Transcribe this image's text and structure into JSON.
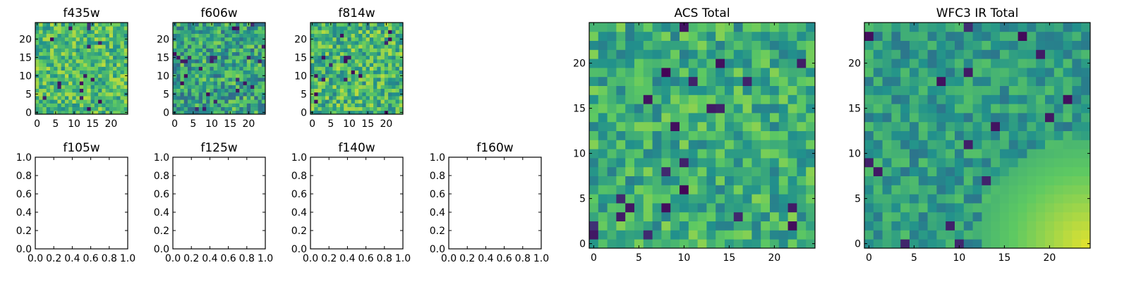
{
  "colormap": [
    "#440154",
    "#3b528b",
    "#21918c",
    "#5ec962",
    "#fde725"
  ],
  "chart_data": [
    {
      "type": "heatmap",
      "title": "f435w",
      "grid": false,
      "size": 25,
      "xlim": [
        -0.5,
        24.5
      ],
      "ylim": [
        -0.5,
        24.5
      ],
      "xticks": [
        0,
        5,
        10,
        15,
        20
      ],
      "yticks": [
        0,
        5,
        10,
        15,
        20
      ],
      "xtick_labels": [
        "0",
        "5",
        "10",
        "15",
        "20"
      ],
      "ytick_labels": [
        "0",
        "5",
        "10",
        "15",
        "20"
      ],
      "values_note": "25x25 pixel intensities; noisy, mostly mid-high (green-yellow)",
      "stats": {
        "mean": 0.68,
        "spread": 0.22,
        "seed": 11
      }
    },
    {
      "type": "heatmap",
      "title": "f606w",
      "grid": false,
      "size": 25,
      "xlim": [
        -0.5,
        24.5
      ],
      "ylim": [
        -0.5,
        24.5
      ],
      "xticks": [
        0,
        5,
        10,
        15,
        20
      ],
      "yticks": [
        0,
        5,
        10,
        15,
        20
      ],
      "xtick_labels": [
        "0",
        "5",
        "10",
        "15",
        "20"
      ],
      "ytick_labels": [
        "0",
        "5",
        "10",
        "15",
        "20"
      ],
      "stats": {
        "mean": 0.58,
        "spread": 0.25,
        "seed": 23
      }
    },
    {
      "type": "heatmap",
      "title": "f814w",
      "grid": false,
      "size": 25,
      "xlim": [
        -0.5,
        24.5
      ],
      "ylim": [
        -0.5,
        24.5
      ],
      "xticks": [
        0,
        5,
        10,
        15,
        20
      ],
      "yticks": [
        0,
        5,
        10,
        15,
        20
      ],
      "xtick_labels": [
        "0",
        "5",
        "10",
        "15",
        "20"
      ],
      "ytick_labels": [
        "0",
        "5",
        "10",
        "15",
        "20"
      ],
      "stats": {
        "mean": 0.66,
        "spread": 0.24,
        "seed": 37
      }
    },
    {
      "type": "scatter",
      "title": "f105w",
      "grid": false,
      "empty": true,
      "xlim": [
        0.0,
        1.0
      ],
      "ylim": [
        0.0,
        1.0
      ],
      "xtick_labels": [
        "0.0",
        "0.2",
        "0.4",
        "0.6",
        "0.8",
        "1.0"
      ],
      "ytick_labels": [
        "0.0",
        "0.2",
        "0.4",
        "0.6",
        "0.8",
        "1.0"
      ]
    },
    {
      "type": "scatter",
      "title": "f125w",
      "grid": false,
      "empty": true,
      "xlim": [
        0.0,
        1.0
      ],
      "ylim": [
        0.0,
        1.0
      ],
      "xtick_labels": [
        "0.0",
        "0.2",
        "0.4",
        "0.6",
        "0.8",
        "1.0"
      ],
      "ytick_labels": [
        "0.0",
        "0.2",
        "0.4",
        "0.6",
        "0.8",
        "1.0"
      ]
    },
    {
      "type": "scatter",
      "title": "f140w",
      "grid": false,
      "empty": true,
      "xlim": [
        0.0,
        1.0
      ],
      "ylim": [
        0.0,
        1.0
      ],
      "xtick_labels": [
        "0.0",
        "0.2",
        "0.4",
        "0.6",
        "0.8",
        "1.0"
      ],
      "ytick_labels": [
        "0.0",
        "0.2",
        "0.4",
        "0.6",
        "0.8",
        "1.0"
      ]
    },
    {
      "type": "scatter",
      "title": "f160w",
      "grid": false,
      "empty": true,
      "xlim": [
        0.0,
        1.0
      ],
      "ylim": [
        0.0,
        1.0
      ],
      "xtick_labels": [
        "0.0",
        "0.2",
        "0.4",
        "0.6",
        "0.8",
        "1.0"
      ],
      "ytick_labels": [
        "0.0",
        "0.2",
        "0.4",
        "0.6",
        "0.8",
        "1.0"
      ]
    },
    {
      "type": "heatmap",
      "title": "ACS Total",
      "grid": false,
      "size": 25,
      "xlim": [
        -0.5,
        24.5
      ],
      "ylim": [
        -0.5,
        24.5
      ],
      "xticks": [
        0,
        5,
        10,
        15,
        20
      ],
      "yticks": [
        0,
        5,
        10,
        15,
        20
      ],
      "xtick_labels": [
        "0",
        "5",
        "10",
        "15",
        "20"
      ],
      "ytick_labels": [
        "0",
        "5",
        "10",
        "15",
        "20"
      ],
      "stats": {
        "mean": 0.62,
        "spread": 0.2,
        "seed": 51
      }
    },
    {
      "type": "heatmap",
      "title": "WFC3 IR Total",
      "grid": false,
      "size": 25,
      "xlim": [
        -0.5,
        24.5
      ],
      "ylim": [
        -0.5,
        24.5
      ],
      "xticks": [
        0,
        5,
        10,
        15,
        20
      ],
      "yticks": [
        0,
        5,
        10,
        15,
        20
      ],
      "xtick_labels": [
        "0",
        "5",
        "10",
        "15",
        "20"
      ],
      "ytick_labels": [
        "0",
        "5",
        "10",
        "15",
        "20"
      ],
      "stats": {
        "mean": 0.55,
        "spread": 0.16,
        "seed": 77,
        "bright_corner": "bottom-right"
      }
    }
  ]
}
